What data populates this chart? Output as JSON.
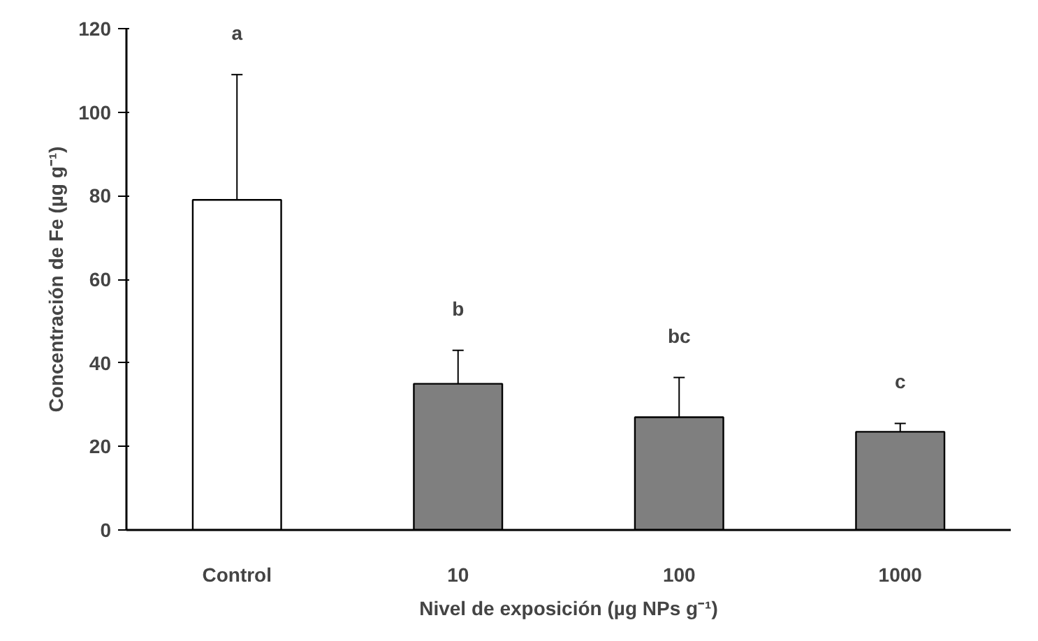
{
  "chart_data": {
    "type": "bar",
    "xlabel": "Nivel de exposición (µg NPs g⁻¹)",
    "ylabel": "Concentración de Fe (µg g⁻¹)",
    "categories": [
      "Control",
      "10",
      "100",
      "1000"
    ],
    "values": [
      79,
      35,
      27,
      23.5
    ],
    "colors": [
      "#ffffff",
      "#7f7f7f",
      "#7f7f7f",
      "#7f7f7f"
    ],
    "errors": [
      30,
      8,
      9.5,
      2
    ],
    "ylim": [
      0,
      120
    ],
    "yticks": [
      0,
      20,
      40,
      60,
      80,
      100,
      120
    ],
    "annotations": [
      "a",
      "b",
      "bc",
      "c"
    ],
    "grid": false
  }
}
